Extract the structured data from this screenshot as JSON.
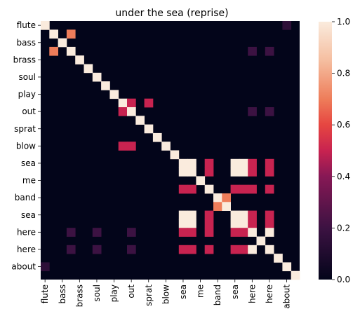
{
  "chart_data": {
    "type": "heatmap",
    "title": "under the sea (reprise)",
    "xlabel": "",
    "ylabel": "",
    "grid": false,
    "tokens": [
      "flute",
      "bass",
      "brass",
      "soul",
      "play",
      "out",
      "sprat",
      "blow",
      "sea",
      "me",
      "band",
      "sea",
      "here",
      "here",
      "about"
    ],
    "cells": [
      "",
      "",
      "flute",
      "",
      "bass",
      "",
      "",
      "",
      "soul",
      "play",
      "",
      "out",
      "",
      "",
      "",
      "sprat",
      "blow",
      "",
      "sea",
      "",
      "",
      "me",
      "",
      "band",
      "",
      "sea",
      "",
      "",
      "here",
      "",
      "here",
      "",
      "",
      "about",
      ""
    ],
    "row_tick_labels": [
      {
        "row": 0,
        "text": "flute"
      },
      {
        "row": 2,
        "text": "bass"
      },
      {
        "row": 4,
        "text": "brass"
      },
      {
        "row": 6,
        "text": "soul"
      },
      {
        "row": 8,
        "text": "play"
      },
      {
        "row": 10,
        "text": "out"
      },
      {
        "row": 12,
        "text": "sprat"
      },
      {
        "row": 14,
        "text": "blow"
      },
      {
        "row": 16,
        "text": "sea"
      },
      {
        "row": 18,
        "text": "me"
      },
      {
        "row": 20,
        "text": "band"
      },
      {
        "row": 22,
        "text": "sea"
      },
      {
        "row": 24,
        "text": "here"
      },
      {
        "row": 26,
        "text": "here"
      },
      {
        "row": 28,
        "text": "about"
      }
    ],
    "col_tick_labels": [
      {
        "col": 0,
        "text": "flute"
      },
      {
        "col": 2,
        "text": "bass"
      },
      {
        "col": 4,
        "text": "brass"
      },
      {
        "col": 6,
        "text": "soul"
      },
      {
        "col": 8,
        "text": "play"
      },
      {
        "col": 10,
        "text": "out"
      },
      {
        "col": 12,
        "text": "sprat"
      },
      {
        "col": 14,
        "text": "blow"
      },
      {
        "col": 16,
        "text": "sea"
      },
      {
        "col": 18,
        "text": "me"
      },
      {
        "col": 20,
        "text": "band"
      },
      {
        "col": 22,
        "text": "sea"
      },
      {
        "col": 24,
        "text": "here"
      },
      {
        "col": 26,
        "text": "here"
      },
      {
        "col": 28,
        "text": "about"
      }
    ],
    "n": 30,
    "vmin": 0.0,
    "vmax": 1.0,
    "colorbar_ticks": [
      "0.0",
      "0.2",
      "0.4",
      "0.6",
      "0.8",
      "1.0"
    ],
    "colormap": "rocket",
    "nonzero": [
      [
        0,
        0,
        1.0
      ],
      [
        0,
        28,
        0.15
      ],
      [
        1,
        1,
        1.0
      ],
      [
        1,
        3,
        0.7
      ],
      [
        2,
        2,
        1.0
      ],
      [
        3,
        1,
        0.7
      ],
      [
        3,
        3,
        1.0
      ],
      [
        3,
        24,
        0.2
      ],
      [
        3,
        26,
        0.2
      ],
      [
        4,
        4,
        1.0
      ],
      [
        5,
        5,
        1.0
      ],
      [
        6,
        6,
        1.0
      ],
      [
        7,
        7,
        1.0
      ],
      [
        8,
        8,
        1.0
      ],
      [
        9,
        9,
        1.0
      ],
      [
        9,
        10,
        0.5
      ],
      [
        9,
        12,
        0.5
      ],
      [
        10,
        9,
        0.5
      ],
      [
        10,
        10,
        1.0
      ],
      [
        10,
        24,
        0.2
      ],
      [
        10,
        26,
        0.2
      ],
      [
        11,
        11,
        1.0
      ],
      [
        12,
        12,
        1.0
      ],
      [
        13,
        13,
        1.0
      ],
      [
        14,
        9,
        0.5
      ],
      [
        14,
        10,
        0.5
      ],
      [
        14,
        14,
        1.0
      ],
      [
        15,
        15,
        1.0
      ],
      [
        16,
        16,
        1.0
      ],
      [
        16,
        17,
        1.0
      ],
      [
        16,
        19,
        0.5
      ],
      [
        16,
        22,
        1.0
      ],
      [
        16,
        23,
        1.0
      ],
      [
        16,
        24,
        0.5
      ],
      [
        16,
        26,
        0.5
      ],
      [
        17,
        16,
        1.0
      ],
      [
        17,
        17,
        1.0
      ],
      [
        17,
        19,
        0.5
      ],
      [
        17,
        22,
        1.0
      ],
      [
        17,
        23,
        1.0
      ],
      [
        17,
        24,
        0.5
      ],
      [
        17,
        26,
        0.5
      ],
      [
        18,
        18,
        1.0
      ],
      [
        19,
        16,
        0.5
      ],
      [
        19,
        17,
        0.5
      ],
      [
        19,
        19,
        1.0
      ],
      [
        19,
        22,
        0.5
      ],
      [
        19,
        23,
        0.5
      ],
      [
        19,
        24,
        0.5
      ],
      [
        19,
        26,
        0.5
      ],
      [
        20,
        20,
        1.0
      ],
      [
        20,
        21,
        0.7
      ],
      [
        21,
        20,
        0.7
      ],
      [
        21,
        21,
        1.0
      ],
      [
        22,
        16,
        1.0
      ],
      [
        22,
        17,
        1.0
      ],
      [
        22,
        19,
        0.5
      ],
      [
        22,
        22,
        1.0
      ],
      [
        22,
        23,
        1.0
      ],
      [
        22,
        24,
        0.5
      ],
      [
        22,
        26,
        0.5
      ],
      [
        23,
        16,
        1.0
      ],
      [
        23,
        17,
        1.0
      ],
      [
        23,
        19,
        0.5
      ],
      [
        23,
        22,
        1.0
      ],
      [
        23,
        23,
        1.0
      ],
      [
        23,
        24,
        0.5
      ],
      [
        23,
        26,
        0.5
      ],
      [
        24,
        3,
        0.2
      ],
      [
        24,
        6,
        0.2
      ],
      [
        24,
        10,
        0.2
      ],
      [
        24,
        16,
        0.5
      ],
      [
        24,
        17,
        0.5
      ],
      [
        24,
        19,
        0.5
      ],
      [
        24,
        22,
        0.5
      ],
      [
        24,
        23,
        0.5
      ],
      [
        24,
        24,
        1.0
      ],
      [
        24,
        26,
        1.0
      ],
      [
        25,
        25,
        1.0
      ],
      [
        26,
        3,
        0.2
      ],
      [
        26,
        6,
        0.2
      ],
      [
        26,
        10,
        0.2
      ],
      [
        26,
        16,
        0.5
      ],
      [
        26,
        17,
        0.5
      ],
      [
        26,
        19,
        0.5
      ],
      [
        26,
        22,
        0.5
      ],
      [
        26,
        23,
        0.5
      ],
      [
        26,
        24,
        1.0
      ],
      [
        26,
        26,
        1.0
      ],
      [
        27,
        27,
        1.0
      ],
      [
        28,
        0,
        0.15
      ],
      [
        28,
        28,
        1.0
      ],
      [
        29,
        29,
        1.0
      ]
    ]
  }
}
